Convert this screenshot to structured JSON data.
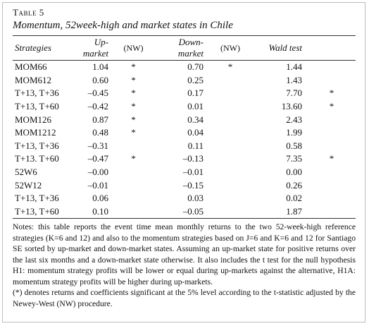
{
  "table_label": "Table 5",
  "title": "Momentum, 52week-high and market states in Chile",
  "header": [
    "Strategies",
    "Up-market",
    "(NW)",
    "Down-market",
    "(NW)",
    "Wald test"
  ],
  "rows": [
    [
      "MOM66",
      "1.04",
      "*",
      "0.70",
      "*",
      "1.44",
      null
    ],
    [
      "MOM612",
      "0.60",
      "*",
      "0.25",
      null,
      "1.43",
      null
    ],
    [
      "T+13, T+36",
      "–0.45",
      "*",
      "0.17",
      null,
      "7.70",
      "*"
    ],
    [
      "T+13, T+60",
      "–0.42",
      "*",
      "0.01",
      null,
      "13.60",
      "*"
    ],
    [
      "MOM126",
      "0.87",
      "*",
      "0.34",
      null,
      "2.43",
      null
    ],
    [
      "MOM1212",
      "0.48",
      "*",
      "0.04",
      null,
      "1.99",
      null
    ],
    [
      "T+13, T+36",
      "–0.31",
      null,
      "0.11",
      null,
      "0.58",
      null
    ],
    [
      "T+13. T+60",
      "–0.47",
      "*",
      "–0.13",
      null,
      "7.35",
      "*"
    ],
    [
      "52W6",
      "–0.00",
      null,
      "–0.01",
      null,
      "0.00",
      null
    ],
    [
      "52W12",
      "–0.01",
      null,
      "–0.15",
      null,
      "0.26",
      null
    ],
    [
      "T+13, T+36",
      "0.06",
      null,
      "0.03",
      null,
      "0.02",
      null
    ],
    [
      "T+13, T+60",
      "0.10",
      null,
      "–0.05",
      null,
      "1.87",
      null
    ]
  ],
  "notes": [
    "Notes: this table reports the event time mean monthly returns to the two 52-week-high reference strategies (K=6 and 12) and also to the momentum strategies based on J=6 and K=6 and 12 for Santiago SE sorted by up-market and down-market states. Assuming an up-market state for positive returns over the last six months and a down-market state otherwise. It also includes the t test for the null hypothesis H1: momentum strategy profits will be lower or equal during up-markets against the alternative, H1A: momentum strategy profits will be higher during up-markets.",
    "(*) denotes returns and coefficients significant at the 5% level according to the t-statistic adjusted by the Newey-West (NW) procedure."
  ]
}
